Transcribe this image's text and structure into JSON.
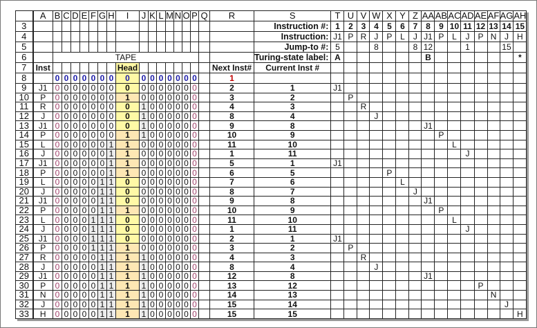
{
  "columns": [
    "A",
    "B",
    "C",
    "D",
    "E",
    "F",
    "G",
    "H",
    "I",
    "J",
    "K",
    "L",
    "M",
    "N",
    "O",
    "P",
    "Q",
    "R",
    "S",
    "T",
    "U",
    "V",
    "W",
    "X",
    "Y",
    "Z",
    "AA",
    "AB",
    "AC",
    "AD",
    "AE",
    "AF",
    "AG",
    "AH"
  ],
  "tape_title": "TAPE",
  "inst_label": "Inst",
  "head_label": "Head",
  "next_label": "Next Inst#",
  "current_label": "Current Inst #",
  "labels": {
    "instruction_num": "Instruction #:",
    "instruction": "Instruction:",
    "jump_to": "Jump-to #:",
    "state_label": "Turing-state label:"
  },
  "program": {
    "numbers": [
      "1",
      "2",
      "3",
      "4",
      "5",
      "6",
      "7",
      "8",
      "9",
      "10",
      "11",
      "12",
      "13",
      "14",
      "15"
    ],
    "instructions": [
      "J1",
      "P",
      "R",
      "J",
      "P",
      "L",
      "J",
      "J1",
      "P",
      "L",
      "J",
      "P",
      "N",
      "J",
      "H"
    ],
    "jumps": [
      "5",
      "",
      "",
      "8",
      "",
      "",
      "8",
      "12",
      "",
      "",
      "1",
      "",
      "",
      "15",
      ""
    ],
    "states": [
      "A",
      "",
      "",
      "",
      "",
      "",
      "",
      "B",
      "",
      "",
      "",
      "",
      "",
      "",
      "*"
    ]
  },
  "colors": {
    "head_zero": "#fff9a6",
    "head_one": "#fde7b4",
    "initial_tape": "#1a1aa8",
    "tape_edge": "#a0406a",
    "start_inst": "#c00000"
  },
  "rows": [
    {
      "n": "8",
      "inst": "",
      "left": "0000000",
      "head": "0",
      "right": "0000000",
      "next": "1",
      "current": ""
    },
    {
      "n": "9",
      "inst": "J1",
      "left": "0000000",
      "head": "0",
      "right": "0000000",
      "next": "2",
      "current": "1"
    },
    {
      "n": "10",
      "inst": "P",
      "left": "0000000",
      "head": "1",
      "right": "0000000",
      "next": "3",
      "current": "2"
    },
    {
      "n": "11",
      "inst": "R",
      "left": "0000000",
      "head": "0",
      "right": "1000000",
      "next": "4",
      "current": "3"
    },
    {
      "n": "12",
      "inst": "J",
      "left": "0000000",
      "head": "0",
      "right": "1000000",
      "next": "8",
      "current": "4"
    },
    {
      "n": "13",
      "inst": "J1",
      "left": "0000000",
      "head": "0",
      "right": "1000000",
      "next": "9",
      "current": "8"
    },
    {
      "n": "14",
      "inst": "P",
      "left": "0000000",
      "head": "1",
      "right": "1000000",
      "next": "10",
      "current": "9"
    },
    {
      "n": "15",
      "inst": "L",
      "left": "0000001",
      "head": "1",
      "right": "0000000",
      "next": "11",
      "current": "10"
    },
    {
      "n": "16",
      "inst": "J",
      "left": "0000001",
      "head": "1",
      "right": "0000000",
      "next": "1",
      "current": "11"
    },
    {
      "n": "17",
      "inst": "J1",
      "left": "0000001",
      "head": "1",
      "right": "0000000",
      "next": "5",
      "current": "1"
    },
    {
      "n": "18",
      "inst": "P",
      "left": "0000001",
      "head": "1",
      "right": "0000000",
      "next": "6",
      "current": "5"
    },
    {
      "n": "19",
      "inst": "L",
      "left": "0000011",
      "head": "0",
      "right": "0000000",
      "next": "7",
      "current": "6"
    },
    {
      "n": "20",
      "inst": "J",
      "left": "0000011",
      "head": "0",
      "right": "0000000",
      "next": "8",
      "current": "7"
    },
    {
      "n": "21",
      "inst": "J1",
      "left": "0000011",
      "head": "0",
      "right": "0000000",
      "next": "9",
      "current": "8"
    },
    {
      "n": "22",
      "inst": "P",
      "left": "0000011",
      "head": "1",
      "right": "0000000",
      "next": "10",
      "current": "9"
    },
    {
      "n": "23",
      "inst": "L",
      "left": "0000111",
      "head": "0",
      "right": "0000000",
      "next": "11",
      "current": "10"
    },
    {
      "n": "24",
      "inst": "J",
      "left": "0000111",
      "head": "0",
      "right": "0000000",
      "next": "1",
      "current": "11"
    },
    {
      "n": "25",
      "inst": "J1",
      "left": "0000111",
      "head": "0",
      "right": "0000000",
      "next": "2",
      "current": "1"
    },
    {
      "n": "26",
      "inst": "P",
      "left": "0000111",
      "head": "1",
      "right": "0000000",
      "next": "3",
      "current": "2"
    },
    {
      "n": "27",
      "inst": "R",
      "left": "0000011",
      "head": "1",
      "right": "1000000",
      "next": "4",
      "current": "3"
    },
    {
      "n": "28",
      "inst": "J",
      "left": "0000011",
      "head": "1",
      "right": "1000000",
      "next": "8",
      "current": "4"
    },
    {
      "n": "29",
      "inst": "J1",
      "left": "0000011",
      "head": "1",
      "right": "1000000",
      "next": "12",
      "current": "8"
    },
    {
      "n": "30",
      "inst": "P",
      "left": "0000011",
      "head": "1",
      "right": "1000000",
      "next": "13",
      "current": "12"
    },
    {
      "n": "31",
      "inst": "N",
      "left": "0000011",
      "head": "1",
      "right": "1000000",
      "next": "14",
      "current": "13"
    },
    {
      "n": "32",
      "inst": "J",
      "left": "0000011",
      "head": "1",
      "right": "1000000",
      "next": "15",
      "current": "14"
    },
    {
      "n": "33",
      "inst": "H",
      "left": "0000011",
      "head": "1",
      "right": "1000000",
      "next": "15",
      "current": "15"
    }
  ],
  "header_rows": [
    "3",
    "4",
    "5",
    "6",
    "7"
  ]
}
